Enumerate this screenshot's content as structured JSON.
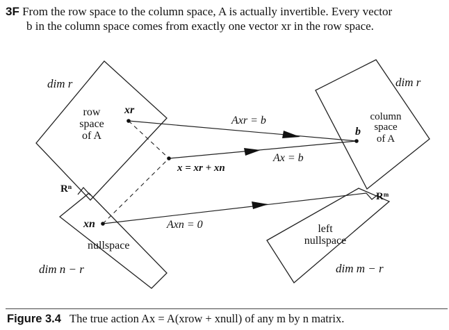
{
  "header": {
    "label": "3F",
    "line1": "From the row space to the column space, A is actually invertible. Every vector",
    "line2": "b in the column space comes from exactly one vector xr in the row space."
  },
  "diagram": {
    "row_space": {
      "dim": "dim r",
      "title": [
        "row",
        "space",
        "of A"
      ],
      "vector": "xr"
    },
    "nullspace": {
      "dim": "dim n − r",
      "title": "nullspace",
      "vector": "xn",
      "ambient": "Rⁿ"
    },
    "column_space": {
      "dim": "dim r",
      "title": [
        "column",
        "space",
        "of A"
      ],
      "vector": "b"
    },
    "left_nullspace": {
      "dim": "dim m − r",
      "title": [
        "left",
        "nullspace"
      ],
      "ambient": "Rᵐ"
    },
    "sum_label": "x = xr + xn",
    "arrows": {
      "row_to_col": "Axr = b",
      "x_to_col": "Ax = b",
      "null_to_zero": "Axn = 0"
    }
  },
  "caption": {
    "label": "Figure 3.4",
    "text": "The true action Ax = A(xrow + xnull) of any m by n matrix."
  }
}
